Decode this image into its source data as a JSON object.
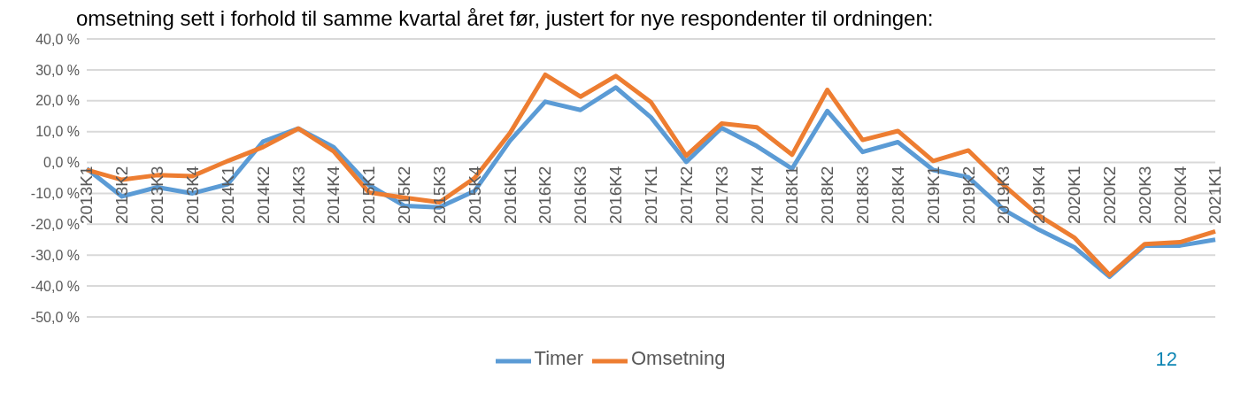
{
  "chart_data": {
    "type": "line",
    "title": "omsetning sett i forhold til samme kvartal året før, justert for nye respondenter til ordningen:",
    "categories": [
      "2013K1",
      "2013K2",
      "2013K3",
      "2013K4",
      "2014K1",
      "2014K2",
      "2014K3",
      "2014K4",
      "2015K1",
      "2015K2",
      "2015K3",
      "2015K4",
      "2016K1",
      "2016K2",
      "2016K3",
      "2016K4",
      "2017K1",
      "2017K2",
      "2017K3",
      "2017K4",
      "2018K1",
      "2018K2",
      "2018K3",
      "2018K4",
      "2019K1",
      "2019K2",
      "2019K3",
      "2019K4",
      "2020K1",
      "2020K2",
      "2020K3",
      "2020K4",
      "2021K1"
    ],
    "series": [
      {
        "name": "Timer",
        "color": "#5b9bd5",
        "values": [
          -2,
          -11,
          -8,
          -10,
          -7,
          6.8,
          11,
          5,
          -7.3,
          -14,
          -14.5,
          -9.2,
          7,
          19.7,
          17,
          24.3,
          14.6,
          0.2,
          11.2,
          5.3,
          -2,
          16.7,
          3.4,
          6.6,
          -2.4,
          -4.8,
          -15.3,
          -21.8,
          -27.4,
          -37,
          -26.9,
          -26.9,
          -25
        ]
      },
      {
        "name": "Omsetning",
        "color": "#ed7d31",
        "values": [
          -2.4,
          -5.6,
          -4.1,
          -4.4,
          0.5,
          5,
          11,
          3.6,
          -9.7,
          -11.4,
          -12.9,
          -5,
          9.5,
          28.4,
          21.3,
          28,
          19.5,
          2.2,
          12.6,
          11.4,
          2.5,
          23.5,
          7.3,
          10.2,
          0.5,
          3.9,
          -7.3,
          -17.2,
          -24.3,
          -36.4,
          -26.4,
          -25.8,
          -22.3
        ]
      }
    ],
    "ylim": [
      -50,
      40
    ],
    "yticks": [
      {
        "value": 40,
        "label": "40,0 %"
      },
      {
        "value": 30,
        "label": "30,0 %"
      },
      {
        "value": 20,
        "label": "20,0 %"
      },
      {
        "value": 10,
        "label": "10,0 %"
      },
      {
        "value": 0,
        "label": "0,0 %"
      },
      {
        "value": -10,
        "label": "-10,0 %"
      },
      {
        "value": -20,
        "label": "-20,0 %"
      },
      {
        "value": -30,
        "label": "-30,0 %"
      },
      {
        "value": -40,
        "label": "-40,0 %"
      },
      {
        "value": -50,
        "label": "-50,0 %"
      }
    ],
    "grid": "y",
    "legend": "bottom",
    "marker": "none",
    "line_style": "solid",
    "annotations": [
      "12"
    ]
  }
}
